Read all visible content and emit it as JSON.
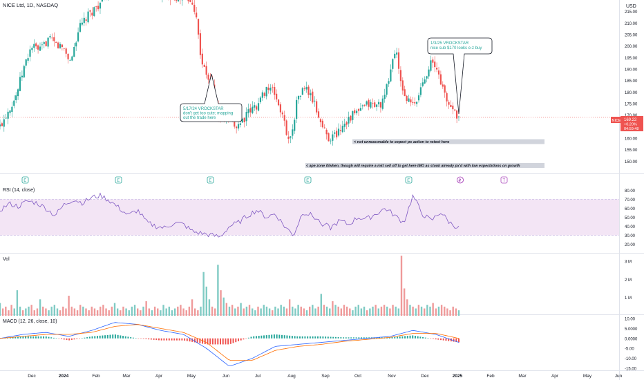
{
  "header": {
    "symbol_title": "NICE Ltd, 1D, NASDAQ",
    "currency": "USD"
  },
  "price_tag": {
    "ticker": "NICE",
    "price": "169.22",
    "change": "+0.20%",
    "countdown": "04:59:48"
  },
  "annotations": {
    "note1_line1": "5/17/24 VROCKSTAR",
    "note1_line2": "don't get too cute; mapping",
    "note1_line3": "out the trade here",
    "note2_line1": "1/3/25 VROCKSTAR",
    "note2_line2": "nice sub $170 looks e-z buy",
    "zone1_text": "< not unreasonable to expect px action to retest here",
    "zone2_text": "< ape zone if/when, though will require a mkt sell off to get here IMO as stonk already px'd with low expectations on growth"
  },
  "earnings_markers": [
    "E",
    "E",
    "E",
    "E",
    "E"
  ],
  "dividend_marker": "₽",
  "t_marker": "T",
  "indicators": {
    "rsi_label": "RSI (14, close)",
    "vol_label": "Vol",
    "macd_label": "MACD (12, 26, close, 10)"
  },
  "x_axis": {
    "labels": [
      "Dec",
      "2024",
      "Feb",
      "Mar",
      "Apr",
      "May",
      "Jun",
      "Jul",
      "Aug",
      "Sep",
      "Oct",
      "Nov",
      "Dec",
      "2025",
      "Feb",
      "Mar",
      "Apr",
      "May",
      "Jun"
    ]
  },
  "colors": {
    "up": "#26a69a",
    "down": "#ef5350",
    "rsi_line": "#7e57c2",
    "rsi_band": "#f3e5f5",
    "macd_line": "#2962ff",
    "signal_line": "#ff6d00",
    "note_text": "#26a69a",
    "price_tag": "#ef5350"
  },
  "chart_data": [
    {
      "type": "candlestick",
      "title": "NICE Ltd, 1D, NASDAQ",
      "ylim": [
        145,
        220
      ],
      "y_ticks": [
        "215.00",
        "210.00",
        "205.00",
        "200.00",
        "195.00",
        "190.00",
        "185.00",
        "180.00",
        "175.00",
        "170.00",
        "165.00",
        "160.00",
        "155.00",
        "150.00"
      ],
      "close_path": [
        [
          "2023-11-20",
          165
        ],
        [
          "2023-11-27",
          172
        ],
        [
          "2023-12-04",
          178
        ],
        [
          "2023-12-11",
          190
        ],
        [
          "2023-12-18",
          200
        ],
        [
          "2023-12-26",
          198
        ],
        [
          "2024-01-02",
          203
        ],
        [
          "2024-01-08",
          201
        ],
        [
          "2024-01-16",
          199
        ],
        [
          "2024-01-22",
          193
        ],
        [
          "2024-01-29",
          207
        ],
        [
          "2024-02-05",
          212
        ],
        [
          "2024-02-12",
          216
        ],
        [
          "2024-02-20",
          220
        ],
        [
          "2024-02-26",
          224
        ],
        [
          "2024-03-04",
          228
        ],
        [
          "2024-05-06",
          220
        ],
        [
          "2024-05-13",
          216
        ],
        [
          "2024-05-16",
          200
        ],
        [
          "2024-05-20",
          190
        ],
        [
          "2024-05-28",
          182
        ],
        [
          "2024-06-03",
          168
        ],
        [
          "2024-06-10",
          170
        ],
        [
          "2024-06-17",
          165
        ],
        [
          "2024-06-24",
          168
        ],
        [
          "2024-07-01",
          172
        ],
        [
          "2024-07-08",
          175
        ],
        [
          "2024-07-15",
          182
        ],
        [
          "2024-07-22",
          180
        ],
        [
          "2024-07-29",
          170
        ],
        [
          "2024-08-05",
          158
        ],
        [
          "2024-08-12",
          178
        ],
        [
          "2024-08-19",
          182
        ],
        [
          "2024-08-26",
          176
        ],
        [
          "2024-09-03",
          165
        ],
        [
          "2024-09-09",
          160
        ],
        [
          "2024-09-16",
          162
        ],
        [
          "2024-09-23",
          167
        ],
        [
          "2024-09-30",
          170
        ],
        [
          "2024-10-07",
          172
        ],
        [
          "2024-10-14",
          175
        ],
        [
          "2024-10-21",
          174
        ],
        [
          "2024-10-28",
          176
        ],
        [
          "2024-11-04",
          192
        ],
        [
          "2024-11-08",
          200
        ],
        [
          "2024-11-11",
          185
        ],
        [
          "2024-11-18",
          176
        ],
        [
          "2024-11-25",
          174
        ],
        [
          "2024-12-02",
          185
        ],
        [
          "2024-12-09",
          193
        ],
        [
          "2024-12-16",
          188
        ],
        [
          "2024-12-23",
          176
        ],
        [
          "2024-12-30",
          172
        ],
        [
          "2025-01-03",
          169.22
        ]
      ]
    },
    {
      "type": "line",
      "title": "RSI (14, close)",
      "ylim": [
        15,
        85
      ],
      "y_ticks": [
        "80.00",
        "70.00",
        "60.00",
        "50.00",
        "40.00",
        "30.00",
        "20.00"
      ],
      "band": [
        30,
        70
      ],
      "series": [
        {
          "values": [
            [
              0,
              58
            ],
            [
              0.02,
              65
            ],
            [
              0.04,
              62
            ],
            [
              0.06,
              68
            ],
            [
              0.08,
              66
            ],
            [
              0.1,
              60
            ],
            [
              0.12,
              52
            ],
            [
              0.14,
              64
            ],
            [
              0.16,
              70
            ],
            [
              0.18,
              66
            ],
            [
              0.2,
              72
            ],
            [
              0.22,
              74
            ],
            [
              0.24,
              68
            ],
            [
              0.26,
              60
            ],
            [
              0.28,
              52
            ],
            [
              0.3,
              58
            ],
            [
              0.32,
              44
            ],
            [
              0.34,
              40
            ],
            [
              0.36,
              38
            ],
            [
              0.38,
              44
            ],
            [
              0.4,
              42
            ],
            [
              0.42,
              34
            ],
            [
              0.44,
              32
            ],
            [
              0.46,
              30
            ],
            [
              0.48,
              28
            ],
            [
              0.5,
              40
            ],
            [
              0.52,
              44
            ],
            [
              0.54,
              52
            ],
            [
              0.56,
              58
            ],
            [
              0.58,
              50
            ],
            [
              0.6,
              54
            ],
            [
              0.62,
              40
            ],
            [
              0.64,
              30
            ],
            [
              0.66,
              56
            ],
            [
              0.68,
              52
            ],
            [
              0.7,
              44
            ],
            [
              0.72,
              38
            ],
            [
              0.74,
              46
            ],
            [
              0.76,
              42
            ],
            [
              0.78,
              50
            ],
            [
              0.8,
              48
            ],
            [
              0.82,
              54
            ],
            [
              0.84,
              60
            ],
            [
              0.86,
              52
            ],
            [
              0.88,
              44
            ],
            [
              0.9,
              74
            ],
            [
              0.92,
              54
            ],
            [
              0.94,
              46
            ],
            [
              0.96,
              56
            ],
            [
              0.98,
              44
            ],
            [
              1.0,
              38
            ]
          ]
        }
      ]
    },
    {
      "type": "bar",
      "title": "Vol",
      "ylim": [
        0,
        3.3
      ],
      "y_ticks": [
        "3 M",
        "2 M",
        "1 M"
      ],
      "values_millions": [
        0.7,
        0.4,
        0.5,
        0.3,
        0.6,
        0.4,
        1.4,
        0.5,
        0.3,
        0.4,
        0.5,
        0.6,
        0.3,
        0.4,
        0.9,
        0.5,
        0.4,
        0.3,
        0.5,
        0.6,
        0.4,
        0.3,
        0.5,
        0.4,
        1.1,
        0.5,
        0.4,
        0.3,
        0.6,
        0.5,
        0.4,
        0.3,
        0.5,
        0.4,
        0.3,
        0.5,
        0.6,
        0.4,
        0.3,
        0.5,
        0.7,
        0.4,
        0.3,
        0.5,
        0.4,
        0.3,
        0.5,
        0.6,
        0.4,
        0.3,
        0.5,
        0.8,
        0.4,
        0.3,
        0.5,
        0.4,
        0.3,
        0.6,
        0.4,
        0.5,
        0.3,
        0.4,
        0.5,
        0.6,
        0.4,
        0.3,
        0.5,
        0.9,
        0.4,
        0.3,
        0.5,
        2.4,
        1.6,
        0.9,
        0.5,
        0.4,
        2.8,
        1.4,
        1.0,
        0.7,
        0.5,
        0.6,
        0.4,
        0.5,
        0.7,
        0.4,
        0.5,
        0.6,
        0.4,
        0.3,
        0.5,
        0.4,
        0.6,
        0.5,
        0.4,
        0.3,
        0.5,
        0.4,
        0.6,
        0.5,
        0.4,
        0.9,
        0.5,
        0.4,
        0.6,
        0.5,
        0.4,
        0.3,
        0.5,
        0.6,
        0.4,
        0.5,
        1.2,
        0.6,
        0.5,
        0.4,
        0.8,
        0.6,
        0.5,
        0.4,
        0.6,
        0.5,
        0.4,
        0.3,
        0.5,
        0.6,
        0.4,
        0.5,
        0.3,
        0.4,
        0.5,
        0.6,
        0.4,
        0.5,
        0.6,
        0.5,
        0.4,
        0.6,
        0.5,
        0.4,
        3.3,
        1.5,
        0.9,
        0.6,
        0.5,
        0.4,
        0.6,
        0.5,
        0.4,
        0.6,
        0.5,
        0.7,
        0.4,
        0.5,
        0.6,
        0.5,
        0.4,
        0.3,
        0.5,
        0.4,
        0.3
      ]
    },
    {
      "type": "line",
      "title": "MACD (12, 26, close, 10)",
      "ylim": [
        -16,
        11
      ],
      "y_ticks": [
        "10.00",
        "5.0000",
        "0.0000",
        "-5.00",
        "-10.00",
        "-15.00"
      ],
      "series": [
        {
          "values": [
            [
              0,
              0
            ],
            [
              0.05,
              2
            ],
            [
              0.1,
              3
            ],
            [
              0.15,
              1
            ],
            [
              0.2,
              4
            ],
            [
              0.25,
              8
            ],
            [
              0.3,
              7
            ],
            [
              0.35,
              4
            ],
            [
              0.4,
              2
            ],
            [
              0.45,
              -5
            ],
            [
              0.5,
              -14
            ],
            [
              0.55,
              -10
            ],
            [
              0.6,
              -4
            ],
            [
              0.65,
              -3
            ],
            [
              0.7,
              -2
            ],
            [
              0.75,
              -1
            ],
            [
              0.8,
              0
            ],
            [
              0.85,
              1
            ],
            [
              0.9,
              4
            ],
            [
              0.95,
              2
            ],
            [
              1.0,
              -2
            ]
          ]
        },
        {
          "values": [
            [
              0,
              0
            ],
            [
              0.05,
              1
            ],
            [
              0.1,
              2
            ],
            [
              0.15,
              2
            ],
            [
              0.2,
              3
            ],
            [
              0.25,
              6
            ],
            [
              0.3,
              7
            ],
            [
              0.35,
              5
            ],
            [
              0.4,
              3
            ],
            [
              0.45,
              -2
            ],
            [
              0.5,
              -11
            ],
            [
              0.55,
              -11
            ],
            [
              0.6,
              -6
            ],
            [
              0.65,
              -4
            ],
            [
              0.7,
              -3
            ],
            [
              0.75,
              -1.5
            ],
            [
              0.8,
              -0.5
            ],
            [
              0.85,
              0.5
            ],
            [
              0.9,
              2.5
            ],
            [
              0.95,
              2.5
            ],
            [
              1.0,
              0
            ]
          ]
        }
      ]
    }
  ]
}
